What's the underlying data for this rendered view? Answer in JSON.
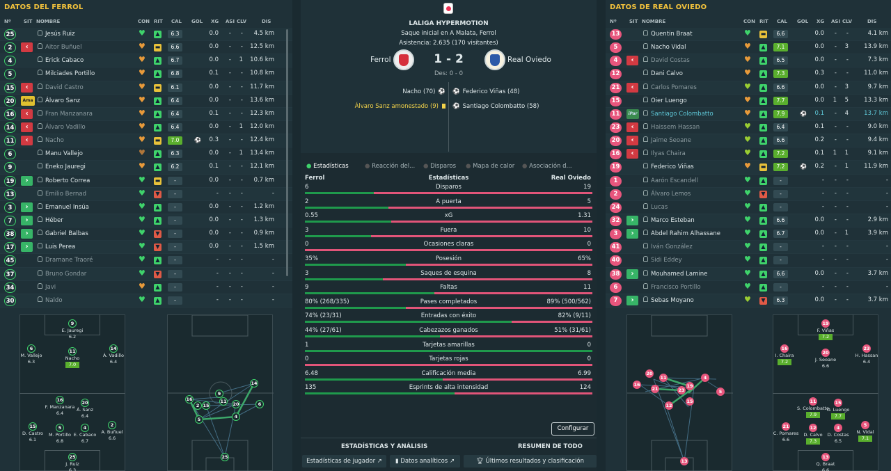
{
  "left": {
    "title": "DATOS DEL FERROL",
    "headers": {
      "n": "Nº",
      "sit": "SIT",
      "nombre": "NOMBRE",
      "con": "CON",
      "rit": "RIT",
      "cal": "CAL",
      "gol": "GOL",
      "xg": "XG",
      "asi": "ASI",
      "clv": "CLV",
      "dis": "DIS"
    },
    "players": [
      {
        "num": "25",
        "sit": "",
        "name": "Jesús Ruiz",
        "con": "green",
        "rit": "up",
        "cal": "6.3",
        "gol": "",
        "xg": "0.0",
        "asi": "-",
        "clv": "-",
        "dis": "4.5 km",
        "bench": false
      },
      {
        "num": "2",
        "sit": "out",
        "name": "Aitor Buñuel",
        "con": "orange",
        "rit": "flat",
        "cal": "6.6",
        "gol": "",
        "xg": "0.0",
        "asi": "-",
        "clv": "-",
        "dis": "12.5 km",
        "bench": true
      },
      {
        "num": "4",
        "sit": "",
        "name": "Erick Cabaco",
        "con": "orange",
        "rit": "up",
        "cal": "6.7",
        "gol": "",
        "xg": "0.0",
        "asi": "-",
        "clv": "1",
        "dis": "10.6 km",
        "bench": false
      },
      {
        "num": "5",
        "sit": "",
        "name": "Milciades Portillo",
        "con": "orange",
        "rit": "up",
        "cal": "6.8",
        "gol": "",
        "xg": "0.1",
        "asi": "-",
        "clv": "-",
        "dis": "10.8 km",
        "bench": false
      },
      {
        "num": "15",
        "sit": "out",
        "name": "David Castro",
        "con": "orange",
        "rit": "flat",
        "cal": "6.1",
        "gol": "",
        "xg": "0.0",
        "asi": "-",
        "clv": "-",
        "dis": "11.7 km",
        "bench": true
      },
      {
        "num": "20",
        "sit": "Ama",
        "name": "Álvaro Sanz",
        "con": "orange",
        "rit": "up",
        "cal": "6.4",
        "gol": "",
        "xg": "0.0",
        "asi": "-",
        "clv": "-",
        "dis": "13.6 km",
        "bench": false
      },
      {
        "num": "16",
        "sit": "out",
        "name": "Fran Manzanara",
        "con": "orange",
        "rit": "up",
        "cal": "6.4",
        "gol": "",
        "xg": "0.1",
        "asi": "-",
        "clv": "-",
        "dis": "12.3 km",
        "bench": true
      },
      {
        "num": "14",
        "sit": "out",
        "name": "Álvaro Vadillo",
        "con": "orange",
        "rit": "up",
        "cal": "6.4",
        "gol": "",
        "xg": "0.0",
        "asi": "-",
        "clv": "1",
        "dis": "12.0 km",
        "bench": true
      },
      {
        "num": "11",
        "sit": "out",
        "name": "Nacho",
        "con": "orange",
        "rit": "flat",
        "cal": "7.0",
        "gol": "⚽",
        "xg": "0.3",
        "asi": "-",
        "clv": "-",
        "dis": "12.4 km",
        "bench": true
      },
      {
        "num": "6",
        "sit": "",
        "name": "Manu Vallejo",
        "con": "dark",
        "rit": "up",
        "cal": "6.3",
        "gol": "",
        "xg": "0.0",
        "asi": "-",
        "clv": "1",
        "dis": "13.4 km",
        "bench": false
      },
      {
        "num": "9",
        "sit": "",
        "name": "Eneko Jauregi",
        "con": "orange",
        "rit": "up",
        "cal": "6.2",
        "gol": "",
        "xg": "0.1",
        "asi": "-",
        "clv": "-",
        "dis": "12.1 km",
        "bench": false
      },
      {
        "num": "19",
        "sit": "in",
        "name": "Roberto Correa",
        "con": "green",
        "rit": "flat",
        "cal": "-",
        "gol": "",
        "xg": "0.0",
        "asi": "-",
        "clv": "-",
        "dis": "0.7 km",
        "bench": false
      },
      {
        "num": "13",
        "sit": "",
        "name": "Emilio Bernad",
        "con": "green",
        "rit": "down",
        "cal": "-",
        "gol": "",
        "xg": "-",
        "asi": "-",
        "clv": "-",
        "dis": "-",
        "bench": true
      },
      {
        "num": "3",
        "sit": "in",
        "name": "Emanuel Insúa",
        "con": "green",
        "rit": "up",
        "cal": "-",
        "gol": "",
        "xg": "0.0",
        "asi": "-",
        "clv": "-",
        "dis": "1.2 km",
        "bench": false
      },
      {
        "num": "7",
        "sit": "in",
        "name": "Héber",
        "con": "green",
        "rit": "up",
        "cal": "-",
        "gol": "",
        "xg": "0.0",
        "asi": "-",
        "clv": "-",
        "dis": "1.3 km",
        "bench": false
      },
      {
        "num": "38",
        "sit": "in",
        "name": "Gabriel Balbas",
        "con": "green",
        "rit": "down",
        "cal": "-",
        "gol": "",
        "xg": "0.0",
        "asi": "-",
        "clv": "-",
        "dis": "0.9 km",
        "bench": false
      },
      {
        "num": "17",
        "sit": "in",
        "name": "Luis Perea",
        "con": "green",
        "rit": "down",
        "cal": "-",
        "gol": "",
        "xg": "0.0",
        "asi": "-",
        "clv": "-",
        "dis": "1.5 km",
        "bench": false
      },
      {
        "num": "45",
        "sit": "",
        "name": "Dramane Traoré",
        "con": "green",
        "rit": "up",
        "cal": "-",
        "gol": "",
        "xg": "-",
        "asi": "-",
        "clv": "-",
        "dis": "-",
        "bench": true
      },
      {
        "num": "37",
        "sit": "",
        "name": "Bruno Gondar",
        "con": "green",
        "rit": "down",
        "cal": "-",
        "gol": "",
        "xg": "-",
        "asi": "-",
        "clv": "-",
        "dis": "-",
        "bench": true
      },
      {
        "num": "34",
        "sit": "",
        "name": "Javi",
        "con": "orange",
        "rit": "up",
        "cal": "-",
        "gol": "",
        "xg": "-",
        "asi": "-",
        "clv": "-",
        "dis": "-",
        "bench": true
      },
      {
        "num": "30",
        "sit": "",
        "name": "Naldo",
        "con": "green",
        "rit": "up",
        "cal": "-",
        "gol": "",
        "xg": "-",
        "asi": "-",
        "clv": "-",
        "dis": "-",
        "bench": true
      }
    ],
    "formation": [
      {
        "num": "9",
        "name": "E. Jauregi",
        "rating": "6.2",
        "hl": false
      },
      {
        "num": "6",
        "name": "M. Vallejo",
        "rating": "6.3",
        "hl": false
      },
      {
        "num": "11",
        "name": "Nacho",
        "rating": "7.0",
        "hl": true
      },
      {
        "num": "14",
        "name": "Á. Vadillo",
        "rating": "6.4",
        "hl": false
      },
      {
        "num": "16",
        "name": "F. Manzanara",
        "rating": "6.4",
        "hl": false
      },
      {
        "num": "20",
        "name": "Á. Sanz",
        "rating": "6.4",
        "hl": false
      },
      {
        "num": "15",
        "name": "D. Castro",
        "rating": "6.1",
        "hl": false
      },
      {
        "num": "5",
        "name": "M. Portillo",
        "rating": "6.8",
        "hl": false
      },
      {
        "num": "4",
        "name": "E. Cabaco",
        "rating": "6.7",
        "hl": false
      },
      {
        "num": "2",
        "name": "A. Buñuel",
        "rating": "6.6",
        "hl": false
      },
      {
        "num": "25",
        "name": "J. Ruiz",
        "rating": "6.3",
        "hl": false
      }
    ]
  },
  "right": {
    "title": "DATOS DE REAL OVIEDO",
    "players": [
      {
        "num": "13",
        "sit": "",
        "name": "Quentin Braat",
        "con": "green",
        "rit": "flat",
        "cal": "6.6",
        "gol": "",
        "xg": "0.0",
        "asi": "-",
        "clv": "-",
        "dis": "4.1 km",
        "bench": false
      },
      {
        "num": "5",
        "sit": "",
        "name": "Nacho Vidal",
        "con": "orange",
        "rit": "up",
        "cal": "7.1",
        "gol": "",
        "xg": "0.0",
        "asi": "-",
        "clv": "3",
        "dis": "13.9 km",
        "bench": false
      },
      {
        "num": "4",
        "sit": "out",
        "name": "David Costas",
        "con": "orange",
        "rit": "up",
        "cal": "6.5",
        "gol": "",
        "xg": "0.0",
        "asi": "-",
        "clv": "-",
        "dis": "7.3 km",
        "bench": true
      },
      {
        "num": "12",
        "sit": "",
        "name": "Dani Calvo",
        "con": "orange",
        "rit": "up",
        "cal": "7.3",
        "gol": "",
        "xg": "0.3",
        "asi": "-",
        "clv": "-",
        "dis": "11.0 km",
        "bench": false
      },
      {
        "num": "21",
        "sit": "out",
        "name": "Carlos Pomares",
        "con": "lime",
        "rit": "up",
        "cal": "6.6",
        "gol": "",
        "xg": "0.0",
        "asi": "-",
        "clv": "3",
        "dis": "9.7 km",
        "bench": true
      },
      {
        "num": "15",
        "sit": "",
        "name": "Oier Luengo",
        "con": "orange",
        "rit": "up",
        "cal": "7.7",
        "gol": "",
        "xg": "0.0",
        "asi": "1",
        "clv": "5",
        "dis": "13.3 km",
        "bench": false
      },
      {
        "num": "11",
        "sit": "iPar",
        "name": "Santiago Colombatto",
        "con": "orange",
        "rit": "up",
        "cal": "7.9",
        "gol": "⚽",
        "xg": "0.1",
        "asi": "-",
        "clv": "4",
        "dis": "13.7 km",
        "bench": false,
        "sel": true
      },
      {
        "num": "23",
        "sit": "out",
        "name": "Haissem Hassan",
        "con": "lime",
        "rit": "up",
        "cal": "6.4",
        "gol": "",
        "xg": "0.1",
        "asi": "-",
        "clv": "-",
        "dis": "9.0 km",
        "bench": true
      },
      {
        "num": "20",
        "sit": "out",
        "name": "Jaime Seoane",
        "con": "lime",
        "rit": "up",
        "cal": "6.6",
        "gol": "",
        "xg": "0.2",
        "asi": "-",
        "clv": "-",
        "dis": "9.4 km",
        "bench": true
      },
      {
        "num": "16",
        "sit": "out",
        "name": "Ilyas Chaira",
        "con": "lime",
        "rit": "up",
        "cal": "7.2",
        "gol": "",
        "xg": "0.1",
        "asi": "1",
        "clv": "1",
        "dis": "9.1 km",
        "bench": true
      },
      {
        "num": "19",
        "sit": "",
        "name": "Federico Viñas",
        "con": "orange",
        "rit": "flat",
        "cal": "7.2",
        "gol": "⚽",
        "xg": "0.2",
        "asi": "-",
        "clv": "1",
        "dis": "11.9 km",
        "bench": false
      },
      {
        "num": "1",
        "sit": "",
        "name": "Aarón Escandell",
        "con": "green",
        "rit": "up",
        "cal": "-",
        "gol": "",
        "xg": "-",
        "asi": "-",
        "clv": "-",
        "dis": "-",
        "bench": true
      },
      {
        "num": "2",
        "sit": "",
        "name": "Álvaro Lemos",
        "con": "green",
        "rit": "down",
        "cal": "-",
        "gol": "",
        "xg": "-",
        "asi": "-",
        "clv": "-",
        "dis": "-",
        "bench": true
      },
      {
        "num": "24",
        "sit": "",
        "name": "Lucas",
        "con": "green",
        "rit": "up",
        "cal": "-",
        "gol": "",
        "xg": "-",
        "asi": "-",
        "clv": "-",
        "dis": "-",
        "bench": true
      },
      {
        "num": "32",
        "sit": "in",
        "name": "Marco Esteban",
        "con": "green",
        "rit": "up",
        "cal": "6.6",
        "gol": "",
        "xg": "0.0",
        "asi": "-",
        "clv": "-",
        "dis": "2.9 km",
        "bench": false
      },
      {
        "num": "3",
        "sit": "in",
        "name": "Abdel Rahim Alhassane",
        "con": "green",
        "rit": "up",
        "cal": "6.7",
        "gol": "",
        "xg": "0.0",
        "asi": "-",
        "clv": "1",
        "dis": "3.9 km",
        "bench": false
      },
      {
        "num": "41",
        "sit": "",
        "name": "Iván González",
        "con": "green",
        "rit": "up",
        "cal": "-",
        "gol": "",
        "xg": "-",
        "asi": "-",
        "clv": "-",
        "dis": "-",
        "bench": true
      },
      {
        "num": "40",
        "sit": "",
        "name": "Sidi Eddey",
        "con": "green",
        "rit": "up",
        "cal": "-",
        "gol": "",
        "xg": "-",
        "asi": "-",
        "clv": "-",
        "dis": "-",
        "bench": true
      },
      {
        "num": "38",
        "sit": "in",
        "name": "Mouhamed Lamine",
        "con": "green",
        "rit": "up",
        "cal": "6.6",
        "gol": "",
        "xg": "0.0",
        "asi": "-",
        "clv": "-",
        "dis": "3.7 km",
        "bench": false
      },
      {
        "num": "6",
        "sit": "",
        "name": "Francisco Portillo",
        "con": "green",
        "rit": "up",
        "cal": "-",
        "gol": "",
        "xg": "-",
        "asi": "-",
        "clv": "-",
        "dis": "-",
        "bench": true
      },
      {
        "num": "7",
        "sit": "in",
        "name": "Sebas Moyano",
        "con": "lime",
        "rit": "down",
        "cal": "6.3",
        "gol": "",
        "xg": "0.0",
        "asi": "-",
        "clv": "-",
        "dis": "3.7 km",
        "bench": false
      }
    ],
    "formation": [
      {
        "num": "19",
        "name": "F. Viñas",
        "rating": "7.2",
        "hl": true
      },
      {
        "num": "16",
        "name": "I. Chaira",
        "rating": "7.2",
        "hl": true
      },
      {
        "num": "20",
        "name": "J. Seoane",
        "rating": "6.6",
        "hl": false
      },
      {
        "num": "23",
        "name": "H. Hassan",
        "rating": "6.4",
        "hl": false
      },
      {
        "num": "11",
        "name": "S. Colombatto",
        "rating": "7.9",
        "hl": true
      },
      {
        "num": "15",
        "name": "O. Luengo",
        "rating": "7.7",
        "hl": true
      },
      {
        "num": "21",
        "name": "C. Pomares",
        "rating": "6.6",
        "hl": false
      },
      {
        "num": "12",
        "name": "D. Calvo",
        "rating": "7.3",
        "hl": true
      },
      {
        "num": "4",
        "name": "D. Costas",
        "rating": "6.5",
        "hl": false
      },
      {
        "num": "5",
        "name": "N. Vidal",
        "rating": "7.1",
        "hl": true
      },
      {
        "num": "13",
        "name": "Q. Braat",
        "rating": "6.6",
        "hl": false
      }
    ]
  },
  "match": {
    "competition": "LALIGA HYPERMOTION",
    "kickoff": "Saque inicial en A Malata, Ferrol",
    "attendance": "Asistencia: 2.635 (170 visitantes)",
    "home": "Ferrol",
    "away": "Real Oviedo",
    "score": "1 - 2",
    "halftime": "Des: 0 - 0",
    "home_events": [
      {
        "text": "Nacho (70)",
        "icon": "⚽",
        "yellow": false
      },
      {
        "text": "Álvaro Sanz amonestado (9)",
        "icon": "",
        "yellow": true
      }
    ],
    "away_events": [
      {
        "text": "Federico Viñas (48)",
        "icon": "⚽"
      },
      {
        "text": "Santiago Colombatto (58)",
        "icon": "⚽"
      }
    ]
  },
  "tabs": [
    "Estadísticas",
    "Reacción del...",
    "Disparos",
    "Mapa de calor",
    "Asociación d..."
  ],
  "stats": {
    "home_label": "Ferrol",
    "mid_label": "Estadísticas",
    "away_label": "Real Oviedo",
    "rows": [
      {
        "label": "Disparos",
        "home": "6",
        "away": "19",
        "share": 0.24
      },
      {
        "label": "A puerta",
        "home": "2",
        "away": "5",
        "share": 0.29
      },
      {
        "label": "xG",
        "home": "0.55",
        "away": "1.31",
        "share": 0.3
      },
      {
        "label": "Fuera",
        "home": "3",
        "away": "10",
        "share": 0.23
      },
      {
        "label": "Ocasiones claras",
        "home": "0",
        "away": "0",
        "share": 0.0
      },
      {
        "label": "Posesión",
        "home": "35%",
        "away": "65%",
        "share": 0.35
      },
      {
        "label": "Saques de esquina",
        "home": "3",
        "away": "8",
        "share": 0.27
      },
      {
        "label": "Faltas",
        "home": "9",
        "away": "11",
        "share": 0.45
      },
      {
        "label": "Pases completados",
        "home": "80% (268/335)",
        "away": "89% (500/562)",
        "share": 0.35
      },
      {
        "label": "Entradas con éxito",
        "home": "74% (23/31)",
        "away": "82% (9/11)",
        "share": 0.72
      },
      {
        "label": "Cabezazos ganados",
        "home": "44% (27/61)",
        "away": "51% (31/61)",
        "share": 0.47
      },
      {
        "label": "Tarjetas amarillas",
        "home": "1",
        "away": "0",
        "share": 1.0
      },
      {
        "label": "Tarjetas rojas",
        "home": "0",
        "away": "0",
        "share": 0.0
      },
      {
        "label": "Calificación media",
        "home": "6.48",
        "away": "6.99",
        "share": 0.48
      },
      {
        "label": "Esprints de alta intensidad",
        "home": "135",
        "away": "124",
        "share": 0.52
      }
    ]
  },
  "configure_label": "Configurar",
  "footer": {
    "left_title": "ESTADÍSTICAS Y ANÁLISIS",
    "right_title": "RESUMEN DE TODO",
    "btn1": "Estadísticas de jugador",
    "btn2": "Datos analíticos",
    "btn3": "Últimos resultados y clasificación"
  },
  "colors": {
    "accent": "#f2c23c",
    "home_bar": "#1f9a4c",
    "away_bar": "#e15579",
    "positive": "#3fd36b"
  }
}
